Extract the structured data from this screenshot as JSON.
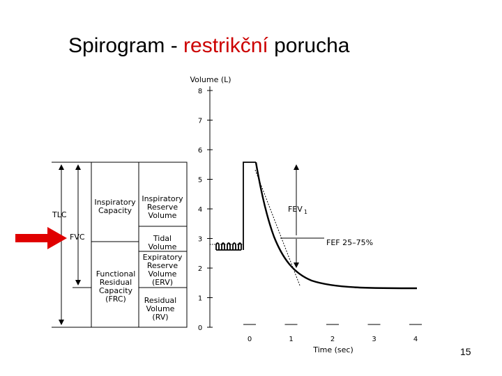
{
  "slide": {
    "title_prefix": "Spirogram - ",
    "title_highlight": "restrikční",
    "title_suffix": " porucha",
    "highlight_color": "#cc0000",
    "page_number": "15"
  },
  "diagram": {
    "y_axis_title": "Volume (L)",
    "x_axis_title": "Time (sec)",
    "y_ticks": [
      "8",
      "7",
      "6",
      "5",
      "4",
      "3",
      "2",
      "1",
      "0"
    ],
    "x_ticks": [
      "0",
      "1",
      "2",
      "3",
      "4"
    ],
    "labels": {
      "tlc": "TLC",
      "fvc": "FVC",
      "ic": [
        "Inspiratory",
        "Capacity"
      ],
      "irv": [
        "Inspiratory",
        "Reserve",
        "Volume"
      ],
      "tidal": [
        "Tidal",
        "Volume"
      ],
      "erv": [
        "Expiratory",
        "Reserve",
        "Volume",
        "(ERV)"
      ],
      "frc": [
        "Functional",
        "Residual",
        "Capacity",
        "(FRC)"
      ],
      "rv": [
        "Residual",
        "Volume",
        "(RV)"
      ],
      "fev1": "FEV",
      "fev1_sub": "1",
      "fef": "FEF 25–75%"
    },
    "arrow_color": "#e00000"
  }
}
